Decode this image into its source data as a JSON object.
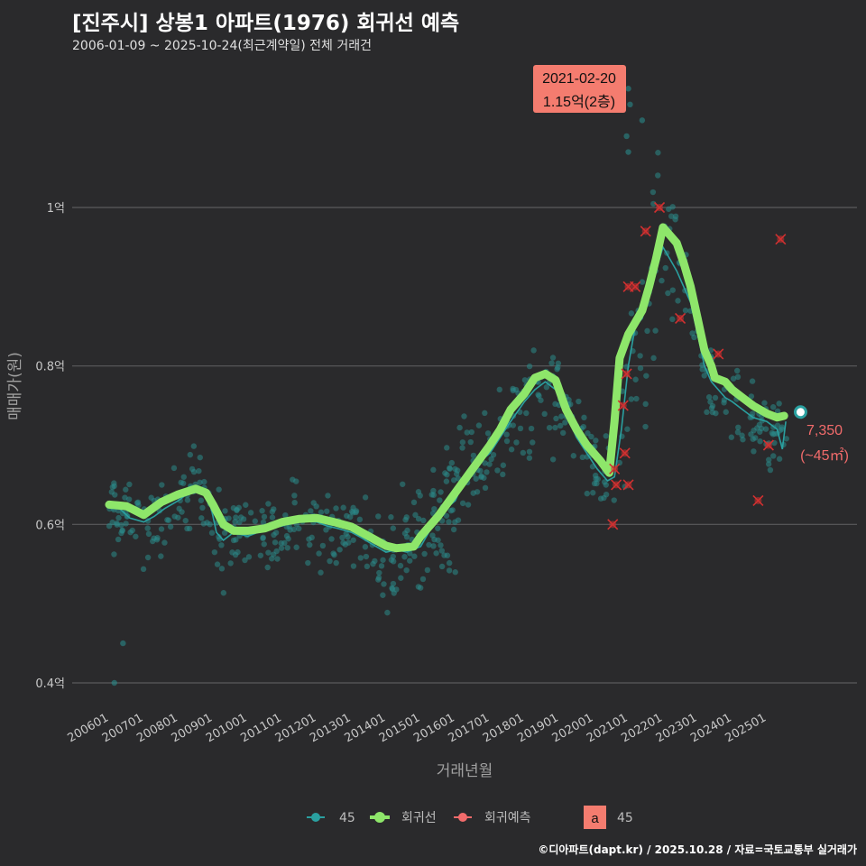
{
  "header": {
    "title": "[진주시] 상봉1 아파트(1976) 회귀선 예측",
    "subtitle": "2006-01-09 ~ 2025-10-24(최근계약일) 전체 거래건"
  },
  "footer": "©디아파트(dapt.kr) / 2025.10.28 / 자료=국토교통부 실거래가",
  "colors": {
    "background": "#2a2a2c",
    "trade_points": "#2a8a8a",
    "trade_line": "#2aa0a0",
    "regression": "#8ee66a",
    "prediction": "#d13030",
    "annotation_box": "#f47c6f",
    "end_label": "#f26b6b"
  },
  "chart_data": {
    "type": "scatter",
    "xlabel": "거래년월",
    "ylabel": "매매가(원)",
    "x_unit": "year (decimal)",
    "xlim": [
      2005.75,
      2026.2
    ],
    "ylim": [
      0.36,
      1.2
    ],
    "y_ticks": [
      {
        "value": 0.4,
        "label": "0.4억"
      },
      {
        "value": 0.6,
        "label": "0.6억"
      },
      {
        "value": 0.8,
        "label": "0.8억"
      },
      {
        "value": 1.0,
        "label": "1억"
      }
    ],
    "x_ticks": [
      {
        "value": 2006.0,
        "label": "200601"
      },
      {
        "value": 2007.0,
        "label": "200701"
      },
      {
        "value": 2008.0,
        "label": "200801"
      },
      {
        "value": 2009.0,
        "label": "200901"
      },
      {
        "value": 2010.0,
        "label": "201001"
      },
      {
        "value": 2011.0,
        "label": "201101"
      },
      {
        "value": 2012.0,
        "label": "201201"
      },
      {
        "value": 2013.0,
        "label": "201301"
      },
      {
        "value": 2014.0,
        "label": "201401"
      },
      {
        "value": 2015.0,
        "label": "201501"
      },
      {
        "value": 2016.0,
        "label": "201601"
      },
      {
        "value": 2017.0,
        "label": "201701"
      },
      {
        "value": 2018.0,
        "label": "201801"
      },
      {
        "value": 2019.0,
        "label": "201901"
      },
      {
        "value": 2020.0,
        "label": "202001"
      },
      {
        "value": 2021.0,
        "label": "202101"
      },
      {
        "value": 2022.0,
        "label": "202201"
      },
      {
        "value": 2023.0,
        "label": "202301"
      },
      {
        "value": 2024.0,
        "label": "202401"
      },
      {
        "value": 2025.0,
        "label": "202501"
      }
    ],
    "regression_line": [
      [
        2006.0,
        0.625
      ],
      [
        2006.5,
        0.623
      ],
      [
        2007.0,
        0.612
      ],
      [
        2007.5,
        0.628
      ],
      [
        2008.0,
        0.638
      ],
      [
        2008.5,
        0.645
      ],
      [
        2008.8,
        0.64
      ],
      [
        2009.0,
        0.625
      ],
      [
        2009.3,
        0.6
      ],
      [
        2009.6,
        0.592
      ],
      [
        2010.0,
        0.592
      ],
      [
        2010.5,
        0.595
      ],
      [
        2011.0,
        0.603
      ],
      [
        2011.5,
        0.607
      ],
      [
        2012.0,
        0.608
      ],
      [
        2012.5,
        0.603
      ],
      [
        2013.0,
        0.597
      ],
      [
        2013.5,
        0.585
      ],
      [
        2014.0,
        0.573
      ],
      [
        2014.3,
        0.57
      ],
      [
        2014.8,
        0.572
      ],
      [
        2015.0,
        0.585
      ],
      [
        2015.5,
        0.61
      ],
      [
        2016.0,
        0.64
      ],
      [
        2016.5,
        0.67
      ],
      [
        2017.0,
        0.7
      ],
      [
        2017.3,
        0.72
      ],
      [
        2017.6,
        0.745
      ],
      [
        2018.0,
        0.765
      ],
      [
        2018.3,
        0.785
      ],
      [
        2018.6,
        0.79
      ],
      [
        2018.9,
        0.782
      ],
      [
        2019.2,
        0.745
      ],
      [
        2019.5,
        0.72
      ],
      [
        2019.8,
        0.7
      ],
      [
        2020.2,
        0.68
      ],
      [
        2020.45,
        0.665
      ],
      [
        2020.6,
        0.73
      ],
      [
        2020.75,
        0.81
      ],
      [
        2021.0,
        0.84
      ],
      [
        2021.2,
        0.855
      ],
      [
        2021.4,
        0.87
      ],
      [
        2021.6,
        0.9
      ],
      [
        2021.8,
        0.935
      ],
      [
        2022.0,
        0.975
      ],
      [
        2022.2,
        0.965
      ],
      [
        2022.4,
        0.955
      ],
      [
        2022.6,
        0.93
      ],
      [
        2022.8,
        0.9
      ],
      [
        2023.0,
        0.86
      ],
      [
        2023.2,
        0.82
      ],
      [
        2023.4,
        0.8
      ],
      [
        2023.5,
        0.785
      ],
      [
        2023.8,
        0.78
      ],
      [
        2024.0,
        0.77
      ],
      [
        2024.3,
        0.76
      ],
      [
        2024.6,
        0.75
      ],
      [
        2025.0,
        0.74
      ],
      [
        2025.3,
        0.735
      ],
      [
        2025.5,
        0.737
      ]
    ],
    "trade_line": [
      [
        2006.0,
        0.625
      ],
      [
        2006.3,
        0.62
      ],
      [
        2006.6,
        0.608
      ],
      [
        2007.0,
        0.603
      ],
      [
        2007.3,
        0.61
      ],
      [
        2007.6,
        0.62
      ],
      [
        2008.0,
        0.63
      ],
      [
        2008.3,
        0.64
      ],
      [
        2008.6,
        0.648
      ],
      [
        2008.9,
        0.63
      ],
      [
        2009.1,
        0.59
      ],
      [
        2009.3,
        0.58
      ],
      [
        2009.6,
        0.59
      ],
      [
        2010.0,
        0.585
      ],
      [
        2010.3,
        0.59
      ],
      [
        2010.6,
        0.595
      ],
      [
        2011.0,
        0.598
      ],
      [
        2011.3,
        0.603
      ],
      [
        2011.6,
        0.605
      ],
      [
        2012.0,
        0.603
      ],
      [
        2012.3,
        0.598
      ],
      [
        2012.6,
        0.595
      ],
      [
        2013.0,
        0.59
      ],
      [
        2013.3,
        0.583
      ],
      [
        2013.6,
        0.575
      ],
      [
        2014.0,
        0.565
      ],
      [
        2014.3,
        0.568
      ],
      [
        2014.6,
        0.565
      ],
      [
        2015.0,
        0.572
      ],
      [
        2015.3,
        0.595
      ],
      [
        2015.6,
        0.615
      ],
      [
        2016.0,
        0.63
      ],
      [
        2016.3,
        0.66
      ],
      [
        2016.6,
        0.675
      ],
      [
        2017.0,
        0.69
      ],
      [
        2017.3,
        0.71
      ],
      [
        2017.6,
        0.73
      ],
      [
        2018.0,
        0.755
      ],
      [
        2018.3,
        0.77
      ],
      [
        2018.6,
        0.78
      ],
      [
        2018.9,
        0.77
      ],
      [
        2019.2,
        0.74
      ],
      [
        2019.5,
        0.71
      ],
      [
        2019.8,
        0.69
      ],
      [
        2020.1,
        0.67
      ],
      [
        2020.4,
        0.655
      ],
      [
        2020.6,
        0.66
      ],
      [
        2020.8,
        0.72
      ],
      [
        2021.0,
        0.8
      ],
      [
        2021.2,
        0.85
      ],
      [
        2021.4,
        0.86
      ],
      [
        2021.6,
        0.89
      ],
      [
        2021.8,
        0.92
      ],
      [
        2022.0,
        0.95
      ],
      [
        2022.2,
        0.935
      ],
      [
        2022.4,
        0.92
      ],
      [
        2022.6,
        0.9
      ],
      [
        2022.8,
        0.88
      ],
      [
        2023.0,
        0.84
      ],
      [
        2023.2,
        0.8
      ],
      [
        2023.4,
        0.78
      ],
      [
        2023.6,
        0.77
      ],
      [
        2023.8,
        0.76
      ],
      [
        2024.0,
        0.755
      ],
      [
        2024.3,
        0.745
      ],
      [
        2024.6,
        0.735
      ],
      [
        2025.0,
        0.73
      ],
      [
        2025.3,
        0.72
      ],
      [
        2025.45,
        0.695
      ],
      [
        2025.55,
        0.73
      ]
    ],
    "prediction_points": [
      [
        2020.55,
        0.6
      ],
      [
        2020.65,
        0.65
      ],
      [
        2020.6,
        0.67
      ],
      [
        2020.9,
        0.69
      ],
      [
        2020.85,
        0.75
      ],
      [
        2021.0,
        0.65
      ],
      [
        2020.95,
        0.79
      ],
      [
        2021.0,
        0.9
      ],
      [
        2021.2,
        0.9
      ],
      [
        2021.5,
        0.97
      ],
      [
        2021.9,
        1.0
      ],
      [
        2022.5,
        0.86
      ],
      [
        2023.6,
        0.815
      ],
      [
        2024.75,
        0.63
      ],
      [
        2025.05,
        0.7
      ],
      [
        2025.4,
        0.96
      ]
    ],
    "annotation": {
      "date": "2021-02-20",
      "price": "1.15억(2층)",
      "x": 2021.13,
      "y": 1.15
    },
    "end_point": {
      "x": 2025.82,
      "y": 0.735,
      "value": "7,350",
      "area": "(~45㎡)"
    },
    "legend": [
      {
        "key": "trade",
        "label": "45"
      },
      {
        "key": "regression",
        "label": "회귀선"
      },
      {
        "key": "prediction",
        "label": "회귀예측"
      },
      {
        "key": "area",
        "label": "45",
        "badge": "a"
      }
    ]
  }
}
